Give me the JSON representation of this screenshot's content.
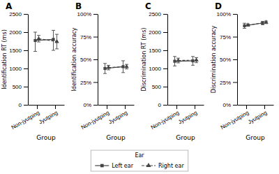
{
  "chart_data": [
    {
      "type": "line",
      "title": "A",
      "x_label": "Group",
      "y_label": "Identification RT (ms)",
      "categories": [
        "Non-jyutping",
        "Jyutping"
      ],
      "ylim": [
        0,
        2500
      ],
      "yticks": [
        0,
        500,
        1000,
        1500,
        2000,
        2500
      ],
      "legend": "bottom",
      "legend_title": "Ear",
      "series": [
        {
          "name": "Left ear",
          "color": "#444444",
          "marker": "square",
          "line_style": "solid",
          "values": [
            1770,
            1800
          ],
          "err_low": [
            300,
            300
          ],
          "err_high": [
            230,
            250
          ]
        },
        {
          "name": "Right ear",
          "color": "#444444",
          "marker": "triangle",
          "line_style": "dashed",
          "values": [
            1820,
            1740
          ],
          "err_low": [
            90,
            200
          ],
          "err_high": [
            90,
            200
          ]
        }
      ]
    },
    {
      "type": "line",
      "title": "B",
      "x_label": "Group",
      "y_label": "Identification accuracy",
      "categories": [
        "Non-jyutping",
        "Jyutping"
      ],
      "ylim": [
        0,
        1
      ],
      "yticks": [
        {
          "value": 0,
          "label": "0%"
        },
        {
          "value": 0.25,
          "label": "25%"
        },
        {
          "value": 0.5,
          "label": "50%"
        },
        {
          "value": 0.75,
          "label": "75%"
        },
        {
          "value": 1.0,
          "label": "100%"
        }
      ],
      "series": [
        {
          "name": "Left ear",
          "color": "#444444",
          "marker": "square",
          "line_style": "solid",
          "values": [
            0.4,
            0.42
          ],
          "err_low": [
            0.055,
            0.065
          ],
          "err_high": [
            0.055,
            0.065
          ]
        },
        {
          "name": "Right ear",
          "color": "#444444",
          "marker": "triangle",
          "line_style": "dashed",
          "values": [
            0.41,
            0.42
          ],
          "err_low": [
            0.025,
            0.025
          ],
          "err_high": [
            0.025,
            0.025
          ]
        }
      ]
    },
    {
      "type": "line",
      "title": "C",
      "x_label": "Group",
      "y_label": "Discrimination RT (ms)",
      "categories": [
        "Non-jyutping",
        "Jyutping"
      ],
      "ylim": [
        0,
        2500
      ],
      "yticks": [
        0,
        500,
        1000,
        1500,
        2000,
        2500
      ],
      "series": [
        {
          "name": "Left ear",
          "color": "#444444",
          "marker": "square",
          "line_style": "solid",
          "values": [
            1200,
            1210
          ],
          "err_low": [
            130,
            120
          ],
          "err_high": [
            130,
            120
          ]
        },
        {
          "name": "Right ear",
          "color": "#444444",
          "marker": "triangle",
          "line_style": "dashed",
          "values": [
            1220,
            1230
          ],
          "err_low": [
            65,
            70
          ],
          "err_high": [
            65,
            70
          ]
        }
      ]
    },
    {
      "type": "line",
      "title": "D",
      "x_label": "Group",
      "y_label": "Discrimination accuracy",
      "categories": [
        "Non-jyutping",
        "Jyutping"
      ],
      "ylim": [
        0,
        1
      ],
      "yticks": [
        {
          "value": 0,
          "label": "0%"
        },
        {
          "value": 0.25,
          "label": "25%"
        },
        {
          "value": 0.5,
          "label": "50%"
        },
        {
          "value": 0.75,
          "label": "75%"
        },
        {
          "value": 1.0,
          "label": "100%"
        }
      ],
      "series": [
        {
          "name": "Left ear",
          "color": "#444444",
          "marker": "square",
          "line_style": "solid",
          "values": [
            0.87,
            0.9
          ],
          "err_low": [
            0.028,
            0.018
          ],
          "err_high": [
            0.028,
            0.018
          ]
        },
        {
          "name": "Right ear",
          "color": "#444444",
          "marker": "triangle",
          "line_style": "dashed",
          "values": [
            0.878,
            0.908
          ],
          "err_low": [
            0.012,
            0.014
          ],
          "err_high": [
            0.012,
            0.014
          ]
        }
      ]
    }
  ]
}
